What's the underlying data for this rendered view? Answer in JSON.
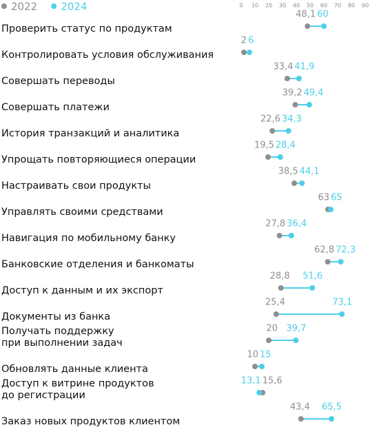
{
  "chart_data": {
    "type": "dumbbell",
    "categories": [
      "Проверить статус по продуктам",
      "Контролировать условия обслуживания",
      "Совершать переводы",
      "Совершать платежи",
      "История транзакций и аналитика",
      "Упрощать повторяющиеся операции",
      "Настраивать свои продукты",
      "Управлять своими средствами",
      "Навигация по мобильному банку",
      "Банковские отделения и банкоматы",
      "Доступ к данным и их экспорт",
      "Документы из банка",
      "Получать поддержку\nпри выполнении задач",
      "Обновлять данные клиента",
      "Доступ к витрине продуктов\nдо регистрации",
      "Заказ новых продуктов клиентом"
    ],
    "series": [
      {
        "name": "2022",
        "color": "#8f8f8f",
        "values": [
          48.1,
          2,
          33.4,
          39.2,
          22.6,
          19.5,
          38.5,
          63,
          27.8,
          62.8,
          28.8,
          25.4,
          20,
          10,
          15.6,
          43.4
        ],
        "value_labels": [
          "48,1",
          "2",
          "33,4",
          "39,2",
          "22,6",
          "19,5",
          "38,5",
          "63",
          "27,8",
          "62,8",
          "28,8",
          "25,4",
          "20",
          "10",
          "15,6",
          "43,4"
        ]
      },
      {
        "name": "2024",
        "color": "#4dcfe9",
        "values": [
          60,
          6,
          41.9,
          49.4,
          34.3,
          28.4,
          44.1,
          65,
          36.4,
          72.3,
          51.6,
          73.1,
          39.7,
          15,
          13.1,
          65.5
        ],
        "value_labels": [
          "60",
          "6",
          "41,9",
          "49,4",
          "34,3",
          "28,4",
          "44,1",
          "65",
          "36,4",
          "72,3",
          "51,6",
          "73,1",
          "39,7",
          "15",
          "13,1",
          "65,5"
        ]
      }
    ],
    "xlim": [
      0,
      90
    ],
    "xticks": [
      0,
      10,
      20,
      30,
      40,
      50,
      60,
      70,
      80,
      90
    ]
  }
}
